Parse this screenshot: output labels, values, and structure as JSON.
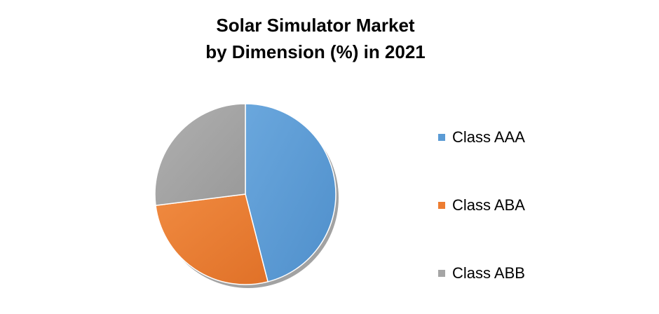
{
  "chart_data": {
    "type": "pie",
    "title_lines": [
      "Solar Simulator Market",
      "by Dimension (%) in 2021"
    ],
    "legend_position": "right",
    "start_angle_deg": 0,
    "direction": "clockwise",
    "series": [
      {
        "slices": [
          {
            "label": "Class AAA",
            "value": 46,
            "color": "#5b9bd5"
          },
          {
            "label": "Class ABA",
            "value": 27,
            "color": "#ed7d31"
          },
          {
            "label": "Class ABB",
            "value": 27,
            "color": "#a5a5a5"
          }
        ]
      }
    ]
  }
}
